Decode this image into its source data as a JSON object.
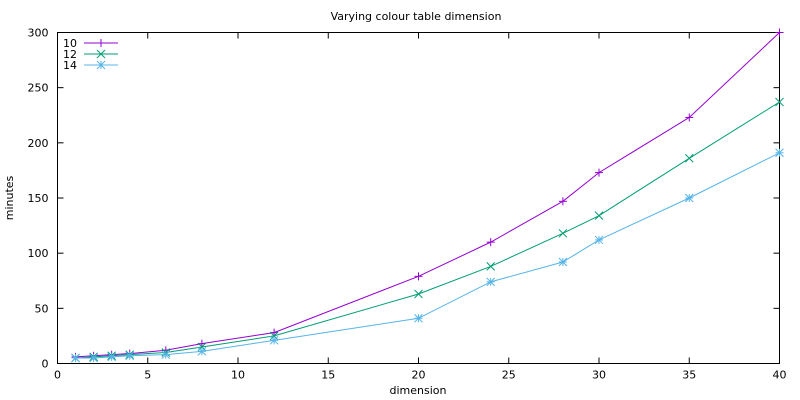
{
  "chart_data": {
    "type": "line",
    "title": "Varying colour table dimension",
    "xlabel": "dimension",
    "ylabel": "minutes",
    "xlim": [
      0,
      40
    ],
    "ylim": [
      0,
      300
    ],
    "xticks": [
      0,
      5,
      10,
      15,
      20,
      25,
      30,
      35,
      40
    ],
    "yticks": [
      0,
      50,
      100,
      150,
      200,
      250,
      300
    ],
    "grid": false,
    "legend_position": "top-left",
    "x": [
      1,
      2,
      3,
      4,
      6,
      8,
      12,
      20,
      24,
      28,
      30,
      35,
      40
    ],
    "series": [
      {
        "name": "10",
        "color": "#9400d3",
        "marker": "plus",
        "values": [
          6,
          7,
          8,
          9,
          12,
          18,
          28,
          79,
          110,
          147,
          173,
          223,
          300
        ]
      },
      {
        "name": "12",
        "color": "#009e73",
        "marker": "cross",
        "values": [
          5,
          6,
          7,
          8,
          10,
          15,
          25,
          63,
          88,
          118,
          134,
          186,
          237
        ]
      },
      {
        "name": "14",
        "color": "#56b4e9",
        "marker": "star",
        "values": [
          5,
          5,
          6,
          7,
          8,
          11,
          21,
          41,
          74,
          92,
          112,
          150,
          191
        ]
      }
    ]
  }
}
